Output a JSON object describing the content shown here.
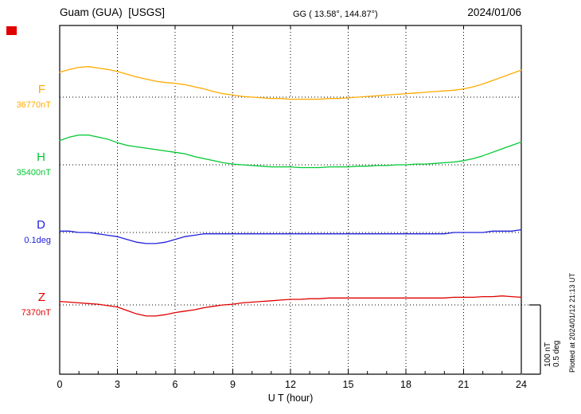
{
  "header": {
    "station": "Guam (GUA)  [USGS]",
    "coords": "GG ( 13.58°, 144.87°)",
    "date": "2024/01/06"
  },
  "axes": {
    "xlabel": "U T (hour)",
    "xticks": [
      0,
      3,
      6,
      9,
      12,
      15,
      18,
      21,
      24
    ],
    "xmin": 0,
    "xmax": 24,
    "minor_tick_hours": 1
  },
  "scale_bar": {
    "label_nt": "100 nT",
    "label_deg": "0.5 deg"
  },
  "footer_note": "Plotted at 2024/01/12 21:13 UT",
  "marker_color": "#e00000",
  "chart_data": {
    "type": "line",
    "title": "Guam (GUA) [USGS] magnetogram",
    "date": "2024/01/06",
    "xlabel": "U T (hour)",
    "x_range_hours": [
      0,
      24
    ],
    "grid": "dotted vertical gridlines every 3 h; dotted horizontal baseline per trace",
    "legend_position": "left labels per trace",
    "scale": {
      "nT_per_div": 100,
      "deg_per_div": 0.5
    },
    "x": [
      0,
      0.5,
      1,
      1.5,
      2,
      2.5,
      3,
      3.5,
      4,
      4.5,
      5,
      5.5,
      6,
      6.5,
      7,
      7.5,
      8,
      8.5,
      9,
      9.5,
      10,
      10.5,
      11,
      11.5,
      12,
      12.5,
      13,
      13.5,
      14,
      14.5,
      15,
      15.5,
      16,
      16.5,
      17,
      17.5,
      18,
      18.5,
      19,
      19.5,
      20,
      20.5,
      21,
      21.5,
      22,
      22.5,
      23,
      23.5,
      24
    ],
    "series": [
      {
        "name": "F",
        "units": "nT",
        "baseline_value": 36770,
        "baseline_label": "36770nT",
        "color": "#ffaa00",
        "offsets": [
          36,
          40,
          43,
          44,
          42,
          40,
          37,
          33,
          29,
          26,
          23,
          21,
          20,
          18,
          15,
          12,
          8,
          5,
          3,
          1,
          0,
          -1,
          -2,
          -2,
          -3,
          -3,
          -3,
          -3,
          -2,
          -2,
          -1,
          0,
          1,
          2,
          3,
          4,
          5,
          6,
          7,
          8,
          9,
          10,
          12,
          15,
          19,
          24,
          29,
          34,
          39
        ]
      },
      {
        "name": "H",
        "units": "nT",
        "baseline_value": 35400,
        "baseline_label": "35400nT",
        "color": "#00c832",
        "offsets": [
          35,
          40,
          43,
          43,
          40,
          37,
          32,
          28,
          26,
          24,
          22,
          20,
          18,
          16,
          12,
          9,
          6,
          3,
          1,
          0,
          -1,
          -2,
          -3,
          -3,
          -3,
          -4,
          -4,
          -4,
          -3,
          -3,
          -3,
          -2,
          -2,
          -1,
          -1,
          0,
          0,
          1,
          1,
          2,
          3,
          4,
          6,
          9,
          13,
          18,
          23,
          28,
          33
        ]
      },
      {
        "name": "D",
        "units": "deg",
        "baseline_value": 0.1,
        "baseline_label": "0.1deg",
        "color": "#2020dd",
        "offsets": [
          0.01,
          0.01,
          0,
          0,
          -0.01,
          -0.02,
          -0.03,
          -0.05,
          -0.07,
          -0.08,
          -0.08,
          -0.07,
          -0.05,
          -0.03,
          -0.02,
          -0.01,
          -0.01,
          -0.01,
          -0.01,
          -0.01,
          -0.01,
          -0.01,
          -0.01,
          -0.01,
          -0.01,
          -0.01,
          -0.01,
          -0.01,
          -0.01,
          -0.01,
          -0.01,
          -0.01,
          -0.01,
          -0.01,
          -0.01,
          -0.01,
          -0.01,
          -0.01,
          -0.01,
          -0.01,
          -0.01,
          0,
          0,
          0,
          0,
          0.01,
          0.01,
          0.01,
          0.02
        ]
      },
      {
        "name": "Z",
        "units": "nT",
        "baseline_value": 7370,
        "baseline_label": "7370nT",
        "color": "#e00000",
        "offsets": [
          5,
          4,
          3,
          2,
          1,
          -1,
          -3,
          -8,
          -13,
          -16,
          -16,
          -14,
          -11,
          -9,
          -7,
          -4,
          -2,
          0,
          1,
          3,
          4,
          5,
          6,
          7,
          8,
          8,
          9,
          9,
          10,
          10,
          10,
          10,
          10,
          10,
          10,
          10,
          10,
          10,
          10,
          10,
          10,
          11,
          11,
          11,
          12,
          12,
          13,
          12,
          11
        ]
      }
    ]
  }
}
